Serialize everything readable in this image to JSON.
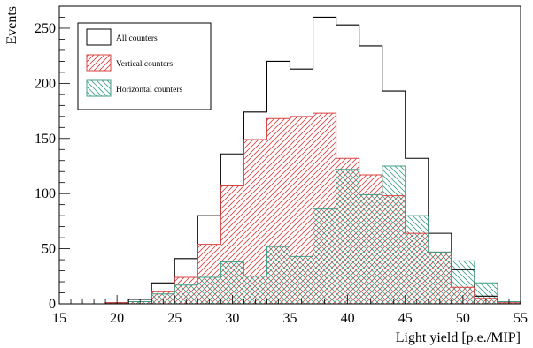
{
  "chart_data": {
    "type": "bar",
    "histtype": "step",
    "title": "",
    "xlabel": "Light yield [p.e./MIP]",
    "ylabel": "Events",
    "xlim": [
      15,
      55
    ],
    "ylim": [
      0,
      270
    ],
    "xticks": [
      15,
      20,
      25,
      30,
      35,
      40,
      45,
      50,
      55
    ],
    "yticks": [
      0,
      50,
      100,
      150,
      200,
      250
    ],
    "bin_width": 2,
    "bin_edges": [
      19,
      21,
      23,
      25,
      27,
      29,
      31,
      33,
      35,
      37,
      39,
      41,
      43,
      45,
      47,
      49,
      51,
      53,
      55
    ],
    "legend": {
      "position": "top-left"
    },
    "series": [
      {
        "name": "All counters",
        "color": "#000000",
        "fill": "none",
        "values": [
          1,
          4,
          19,
          41,
          80,
          136,
          174,
          220,
          213,
          260,
          253,
          234,
          193,
          132,
          64,
          31,
          7,
          2
        ]
      },
      {
        "name": "Vertical counters",
        "color": "#d94040",
        "fill": "hatch-diagonal",
        "values": [
          1,
          2,
          11,
          24,
          54,
          107,
          149,
          168,
          170,
          173,
          132,
          117,
          98,
          64,
          47,
          15,
          5,
          1
        ]
      },
      {
        "name": "Horizontal counters",
        "color": "#3f9f86",
        "fill": "hatch-antidiagonal",
        "values": [
          0,
          2,
          9,
          17,
          24,
          38,
          25,
          52,
          43,
          86,
          122,
          99,
          125,
          80,
          47,
          39,
          19,
          2
        ]
      }
    ]
  }
}
